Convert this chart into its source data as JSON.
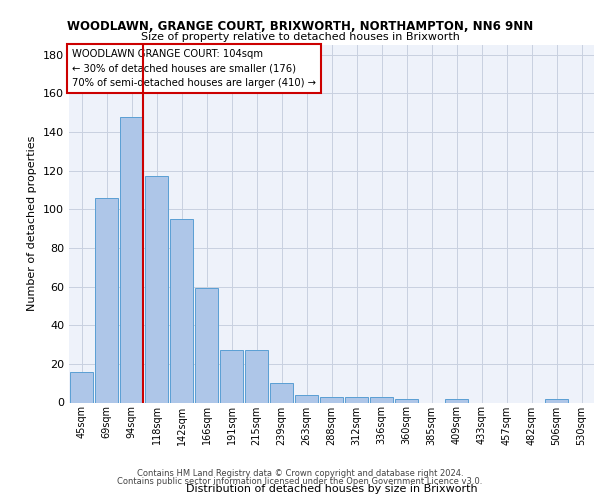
{
  "title1": "WOODLAWN, GRANGE COURT, BRIXWORTH, NORTHAMPTON, NN6 9NN",
  "title2": "Size of property relative to detached houses in Brixworth",
  "xlabel": "Distribution of detached houses by size in Brixworth",
  "ylabel": "Number of detached properties",
  "categories": [
    "45sqm",
    "69sqm",
    "94sqm",
    "118sqm",
    "142sqm",
    "166sqm",
    "191sqm",
    "215sqm",
    "239sqm",
    "263sqm",
    "288sqm",
    "312sqm",
    "336sqm",
    "360sqm",
    "385sqm",
    "409sqm",
    "433sqm",
    "457sqm",
    "482sqm",
    "506sqm",
    "530sqm"
  ],
  "values": [
    16,
    106,
    148,
    117,
    95,
    59,
    27,
    27,
    10,
    4,
    3,
    3,
    3,
    2,
    0,
    2,
    0,
    0,
    0,
    2,
    0
  ],
  "bar_color": "#aec6e8",
  "bar_edge_color": "#5a9fd4",
  "grid_color": "#c8d0e0",
  "background_color": "#eef2fa",
  "annotation_box_color": "#ffffff",
  "annotation_box_edge": "#cc0000",
  "property_line_color": "#cc0000",
  "property_bin_index": 2,
  "annotation_line1": "WOODLAWN GRANGE COURT: 104sqm",
  "annotation_line2": "← 30% of detached houses are smaller (176)",
  "annotation_line3": "70% of semi-detached houses are larger (410) →",
  "ylim": [
    0,
    185
  ],
  "yticks": [
    0,
    20,
    40,
    60,
    80,
    100,
    120,
    140,
    160,
    180
  ],
  "footer1": "Contains HM Land Registry data © Crown copyright and database right 2024.",
  "footer2": "Contains public sector information licensed under the Open Government Licence v3.0."
}
